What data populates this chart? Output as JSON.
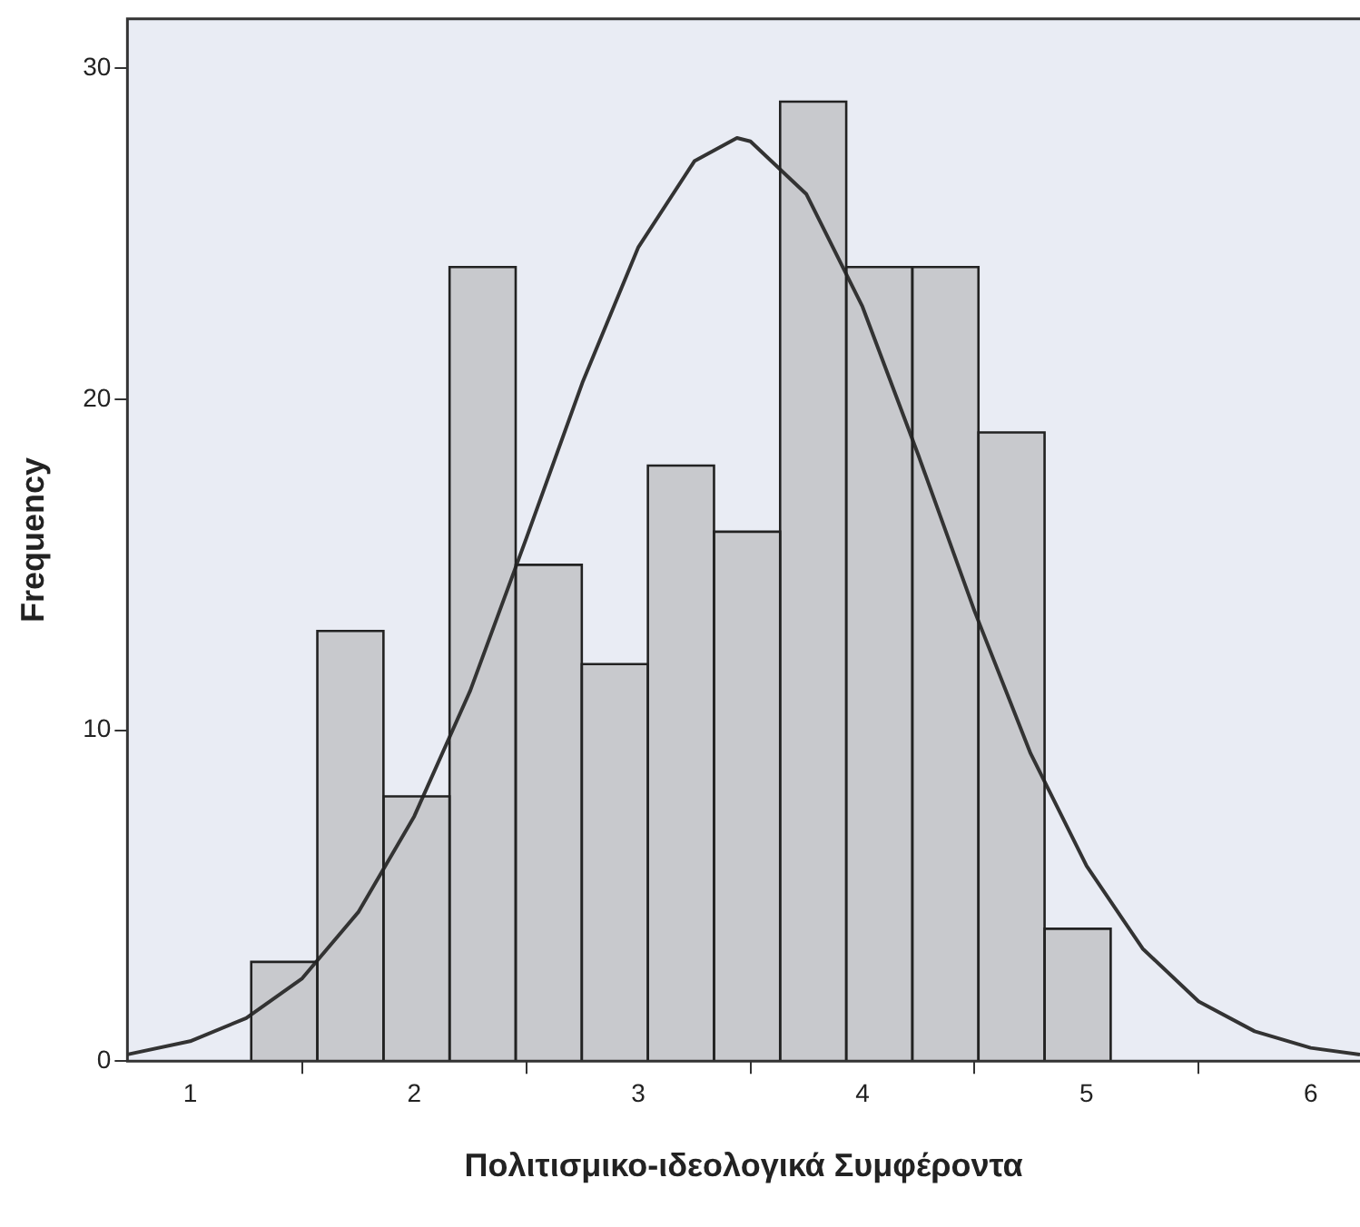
{
  "chart_data": {
    "type": "histogram",
    "xlabel": "Πολιτισμικο-ιδεολογικά Συμφέροντα",
    "ylabel": "Frequency",
    "bins": [
      1.27,
      1.57,
      1.86,
      2.16,
      2.45,
      2.75,
      3.04,
      3.34,
      3.63,
      3.93,
      4.22,
      4.52,
      4.81,
      5.11
    ],
    "values": [
      3,
      13,
      8,
      24,
      15,
      12,
      18,
      16,
      29,
      24,
      24,
      19,
      4
    ],
    "color": "#c8c9cd",
    "series": [
      {
        "type": "line",
        "color": "#333333",
        "marker": "none",
        "x": [
          0.72,
          1.0,
          1.25,
          1.5,
          1.75,
          2.0,
          2.25,
          2.5,
          2.75,
          3.0,
          3.25,
          3.44,
          3.5,
          3.75,
          4.0,
          4.25,
          4.5,
          4.75,
          5.0,
          5.25,
          5.5,
          5.75,
          6.0,
          6.22
        ],
        "values": [
          0.2,
          0.6,
          1.3,
          2.5,
          4.5,
          7.4,
          11.2,
          15.8,
          20.5,
          24.6,
          27.2,
          27.9,
          27.8,
          26.2,
          22.8,
          18.3,
          13.6,
          9.3,
          5.9,
          3.4,
          1.8,
          0.9,
          0.4,
          0.2
        ]
      }
    ],
    "xlim": [
      0.72,
      6.22
    ],
    "xticks": [
      1,
      2,
      3,
      4,
      5,
      6
    ],
    "ylim": [
      0,
      31.5
    ],
    "yticks": [
      0,
      10,
      20,
      30
    ],
    "grid": false,
    "legend": false
  }
}
